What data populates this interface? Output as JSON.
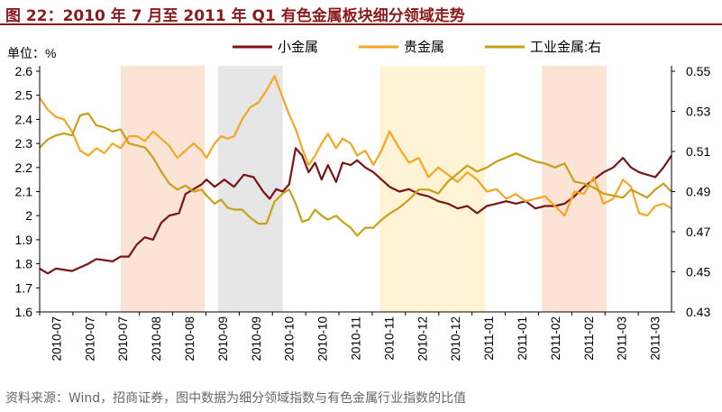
{
  "header": {
    "title": "图 22：2010 年 7 月至 2011 年 Q1 有色金属板块细分领域走势"
  },
  "footer": {
    "source": "资料来源：Wind，招商证券，图中数据为细分领域指数与有色金属行业指数的比值"
  },
  "colors": {
    "small_metals": "#7b1416",
    "precious_metals": "#f5a623",
    "industrial_metals": "#c8a018",
    "band_peach": "#fbe4d5",
    "band_gray": "#e6e6e6",
    "band_yellow": "#fff3d6",
    "title": "#8b1a1a"
  },
  "chart_data": {
    "type": "line",
    "unit_label": "单位：%",
    "x_tick_labels": [
      "2010-07",
      "2010-07",
      "2010-07",
      "2010-08",
      "2010-08",
      "2010-09",
      "2010-09",
      "2010-10",
      "2010-10",
      "2010-11",
      "2010-11",
      "2010-12",
      "2010-12",
      "2011-01",
      "2011-01",
      "2011-02",
      "2011-02",
      "2011-03",
      "2011-03"
    ],
    "y_left": {
      "ylim": [
        1.6,
        2.6
      ],
      "ticks": [
        "1.6",
        "1.7",
        "1.8",
        "1.9",
        "2",
        "2.1",
        "2.2",
        "2.3",
        "2.4",
        "2.5",
        "2.6"
      ]
    },
    "y_right": {
      "ylim": [
        0.43,
        0.55
      ],
      "ticks": [
        "0.43",
        "0.45",
        "0.47",
        "0.49",
        "0.51",
        "0.53",
        "0.55"
      ]
    },
    "legend": {
      "placement": "top",
      "entries": [
        "小金属",
        "贵金属",
        "工业金属:右"
      ]
    },
    "shaded_periods": [
      {
        "x": [
          5.0,
          10.2
        ],
        "color_key": "band_peach"
      },
      {
        "x": [
          11.0,
          15.0
        ],
        "color_key": "band_gray"
      },
      {
        "x": [
          21.0,
          27.5
        ],
        "color_key": "band_yellow"
      },
      {
        "x": [
          31.0,
          35.0
        ],
        "color_key": "band_peach"
      }
    ],
    "series": [
      {
        "name": "小金属",
        "axis": "left",
        "color_key": "small_metals",
        "points": [
          [
            0,
            1.78
          ],
          [
            0.5,
            1.76
          ],
          [
            1,
            1.78
          ],
          [
            2,
            1.77
          ],
          [
            3,
            1.8
          ],
          [
            3.5,
            1.82
          ],
          [
            4.5,
            1.81
          ],
          [
            5.0,
            1.83
          ],
          [
            5.5,
            1.83
          ],
          [
            6,
            1.88
          ],
          [
            6.5,
            1.91
          ],
          [
            7,
            1.9
          ],
          [
            7.5,
            1.97
          ],
          [
            8,
            2.0
          ],
          [
            8.6,
            2.01
          ],
          [
            9,
            2.09
          ],
          [
            9.5,
            2.11
          ],
          [
            10,
            2.13
          ],
          [
            10.3,
            2.15
          ],
          [
            10.8,
            2.12
          ],
          [
            11.4,
            2.15
          ],
          [
            12,
            2.12
          ],
          [
            12.6,
            2.17
          ],
          [
            13.2,
            2.16
          ],
          [
            13.8,
            2.1
          ],
          [
            14.2,
            2.07
          ],
          [
            14.6,
            2.11
          ],
          [
            15.0,
            2.1
          ],
          [
            15.4,
            2.13
          ],
          [
            15.8,
            2.28
          ],
          [
            16.2,
            2.25
          ],
          [
            16.6,
            2.18
          ],
          [
            17.0,
            2.22
          ],
          [
            17.4,
            2.15
          ],
          [
            17.8,
            2.21
          ],
          [
            18.3,
            2.14
          ],
          [
            18.7,
            2.22
          ],
          [
            19.2,
            2.21
          ],
          [
            19.6,
            2.23
          ],
          [
            20.1,
            2.2
          ],
          [
            20.6,
            2.18
          ],
          [
            21.1,
            2.15
          ],
          [
            21.6,
            2.12
          ],
          [
            22.2,
            2.1
          ],
          [
            22.8,
            2.11
          ],
          [
            23.4,
            2.09
          ],
          [
            24.0,
            2.08
          ],
          [
            24.6,
            2.06
          ],
          [
            25.2,
            2.05
          ],
          [
            25.8,
            2.03
          ],
          [
            26.4,
            2.04
          ],
          [
            27.0,
            2.01
          ],
          [
            27.6,
            2.04
          ],
          [
            28.2,
            2.05
          ],
          [
            28.8,
            2.06
          ],
          [
            29.4,
            2.05
          ],
          [
            30.0,
            2.06
          ],
          [
            30.6,
            2.03
          ],
          [
            31.2,
            2.04
          ],
          [
            31.8,
            2.04
          ],
          [
            32.4,
            2.05
          ],
          [
            33.0,
            2.08
          ],
          [
            33.6,
            2.12
          ],
          [
            34.2,
            2.15
          ],
          [
            34.8,
            2.18
          ],
          [
            35.4,
            2.2
          ],
          [
            36.0,
            2.24
          ],
          [
            36.5,
            2.2
          ],
          [
            37.0,
            2.18
          ],
          [
            37.5,
            2.17
          ],
          [
            38.0,
            2.16
          ],
          [
            38.5,
            2.2
          ],
          [
            39.0,
            2.25
          ]
        ]
      },
      {
        "name": "贵金属",
        "axis": "left",
        "color_key": "precious_metals",
        "points": [
          [
            0,
            2.49
          ],
          [
            0.5,
            2.44
          ],
          [
            1,
            2.41
          ],
          [
            1.5,
            2.4
          ],
          [
            2,
            2.35
          ],
          [
            2.5,
            2.27
          ],
          [
            3,
            2.25
          ],
          [
            3.5,
            2.28
          ],
          [
            4,
            2.26
          ],
          [
            4.5,
            2.3
          ],
          [
            5.0,
            2.28
          ],
          [
            5.5,
            2.33
          ],
          [
            6,
            2.33
          ],
          [
            6.5,
            2.31
          ],
          [
            7,
            2.35
          ],
          [
            7.5,
            2.32
          ],
          [
            8,
            2.29
          ],
          [
            8.5,
            2.24
          ],
          [
            9,
            2.27
          ],
          [
            9.5,
            2.3
          ],
          [
            10,
            2.27
          ],
          [
            10.3,
            2.24
          ],
          [
            10.8,
            2.3
          ],
          [
            11.2,
            2.33
          ],
          [
            11.6,
            2.32
          ],
          [
            12,
            2.33
          ],
          [
            12.5,
            2.4
          ],
          [
            13,
            2.45
          ],
          [
            13.5,
            2.47
          ],
          [
            14,
            2.52
          ],
          [
            14.5,
            2.58
          ],
          [
            15.0,
            2.49
          ],
          [
            15.4,
            2.42
          ],
          [
            15.8,
            2.36
          ],
          [
            16.2,
            2.28
          ],
          [
            16.6,
            2.21
          ],
          [
            17.0,
            2.25
          ],
          [
            17.4,
            2.3
          ],
          [
            17.8,
            2.34
          ],
          [
            18.3,
            2.28
          ],
          [
            18.7,
            2.32
          ],
          [
            19.2,
            2.3
          ],
          [
            19.6,
            2.25
          ],
          [
            20.1,
            2.27
          ],
          [
            20.6,
            2.21
          ],
          [
            21.1,
            2.27
          ],
          [
            21.6,
            2.35
          ],
          [
            22.2,
            2.28
          ],
          [
            22.8,
            2.22
          ],
          [
            23.4,
            2.24
          ],
          [
            24.0,
            2.16
          ],
          [
            24.6,
            2.2
          ],
          [
            25.2,
            2.17
          ],
          [
            25.8,
            2.14
          ],
          [
            26.4,
            2.18
          ],
          [
            27.0,
            2.15
          ],
          [
            27.6,
            2.1
          ],
          [
            28.2,
            2.11
          ],
          [
            28.8,
            2.07
          ],
          [
            29.4,
            2.09
          ],
          [
            30.0,
            2.06
          ],
          [
            30.6,
            2.07
          ],
          [
            31.2,
            2.08
          ],
          [
            31.8,
            2.04
          ],
          [
            32.4,
            2.0
          ],
          [
            33.0,
            2.1
          ],
          [
            33.6,
            2.09
          ],
          [
            34.2,
            2.16
          ],
          [
            34.8,
            2.05
          ],
          [
            35.4,
            2.07
          ],
          [
            36.0,
            2.15
          ],
          [
            36.5,
            2.12
          ],
          [
            37.0,
            2.01
          ],
          [
            37.5,
            2.0
          ],
          [
            38.0,
            2.04
          ],
          [
            38.5,
            2.05
          ],
          [
            39.0,
            2.03
          ]
        ]
      },
      {
        "name": "工业金属:右",
        "axis": "right",
        "color_key": "industrial_metals",
        "points": [
          [
            0,
            0.512
          ],
          [
            0.5,
            0.516
          ],
          [
            1,
            0.518
          ],
          [
            1.5,
            0.519
          ],
          [
            2,
            0.518
          ],
          [
            2.5,
            0.528
          ],
          [
            3,
            0.529
          ],
          [
            3.5,
            0.523
          ],
          [
            4,
            0.522
          ],
          [
            4.5,
            0.52
          ],
          [
            5.0,
            0.521
          ],
          [
            5.5,
            0.514
          ],
          [
            6,
            0.513
          ],
          [
            6.5,
            0.512
          ],
          [
            7,
            0.507
          ],
          [
            7.5,
            0.5
          ],
          [
            8,
            0.494
          ],
          [
            8.5,
            0.491
          ],
          [
            9,
            0.493
          ],
          [
            9.5,
            0.49
          ],
          [
            10,
            0.491
          ],
          [
            10.3,
            0.488
          ],
          [
            10.8,
            0.484
          ],
          [
            11.2,
            0.486
          ],
          [
            11.6,
            0.482
          ],
          [
            12,
            0.481
          ],
          [
            12.5,
            0.481
          ],
          [
            13,
            0.477
          ],
          [
            13.5,
            0.474
          ],
          [
            14,
            0.474
          ],
          [
            14.5,
            0.485
          ],
          [
            15.0,
            0.489
          ],
          [
            15.4,
            0.491
          ],
          [
            15.8,
            0.484
          ],
          [
            16.2,
            0.475
          ],
          [
            16.6,
            0.476
          ],
          [
            17.0,
            0.481
          ],
          [
            17.4,
            0.478
          ],
          [
            17.8,
            0.476
          ],
          [
            18.3,
            0.478
          ],
          [
            18.7,
            0.475
          ],
          [
            19.2,
            0.472
          ],
          [
            19.6,
            0.468
          ],
          [
            20.1,
            0.472
          ],
          [
            20.6,
            0.472
          ],
          [
            21.1,
            0.476
          ],
          [
            21.6,
            0.479
          ],
          [
            22.2,
            0.482
          ],
          [
            22.8,
            0.486
          ],
          [
            23.4,
            0.491
          ],
          [
            24.0,
            0.491
          ],
          [
            24.6,
            0.489
          ],
          [
            25.2,
            0.495
          ],
          [
            25.8,
            0.499
          ],
          [
            26.4,
            0.503
          ],
          [
            27.0,
            0.5
          ],
          [
            27.6,
            0.502
          ],
          [
            28.2,
            0.505
          ],
          [
            28.8,
            0.507
          ],
          [
            29.4,
            0.509
          ],
          [
            30.0,
            0.507
          ],
          [
            30.6,
            0.505
          ],
          [
            31.2,
            0.504
          ],
          [
            31.8,
            0.502
          ],
          [
            32.4,
            0.504
          ],
          [
            33.0,
            0.495
          ],
          [
            33.6,
            0.494
          ],
          [
            34.2,
            0.492
          ],
          [
            34.8,
            0.489
          ],
          [
            35.4,
            0.488
          ],
          [
            36.0,
            0.487
          ],
          [
            36.5,
            0.491
          ],
          [
            37.0,
            0.489
          ],
          [
            37.5,
            0.487
          ],
          [
            38.0,
            0.491
          ],
          [
            38.5,
            0.494
          ],
          [
            39.0,
            0.49
          ]
        ]
      }
    ]
  }
}
